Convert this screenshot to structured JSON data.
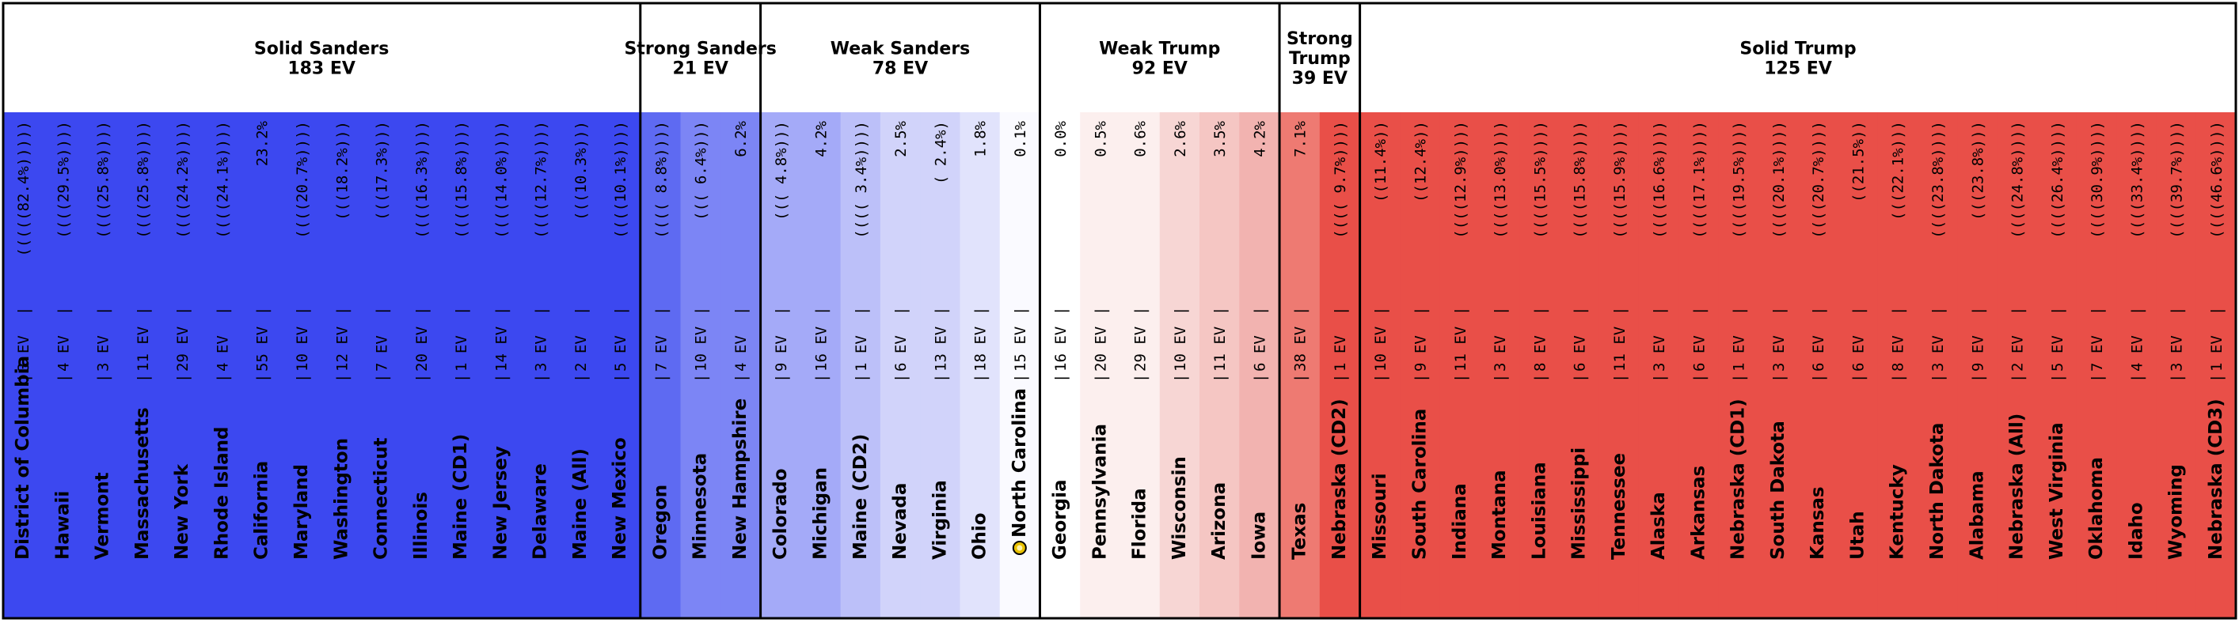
{
  "chart_data": {
    "type": "table",
    "title": "",
    "categories": [
      {
        "label": "Solid Sanders",
        "ev": "183 EV",
        "color": "#3c48f0"
      },
      {
        "label": "Strong Sanders",
        "ev": "21 EV",
        "color": "#5e6af2"
      },
      {
        "label": "Weak Sanders",
        "ev": "78 EV",
        "color": "#c9ccf9"
      },
      {
        "label": "Weak Trump",
        "ev": "92 EV",
        "color": "#f5c6c3"
      },
      {
        "label": "Strong Trump",
        "ev": "39 EV",
        "color": "#ee7a72"
      },
      {
        "label": "Solid Trump",
        "ev": "125 EV",
        "color": "#e94f48"
      }
    ],
    "states": [
      {
        "state": "District of Columbia",
        "ev": "3 EV",
        "margin": "(((((82.4%)))))",
        "category": 0,
        "color": "#3c48f0"
      },
      {
        "state": "Hawaii",
        "ev": "4 EV",
        "margin": "((((29.5%))))",
        "category": 0,
        "color": "#3c48f0"
      },
      {
        "state": "Vermont",
        "ev": "3 EV",
        "margin": "((((25.8%))))",
        "category": 0,
        "color": "#3c48f0"
      },
      {
        "state": "Massachusetts",
        "ev": "11 EV",
        "margin": "((((25.8%))))",
        "category": 0,
        "color": "#3c48f0"
      },
      {
        "state": "New York",
        "ev": "29 EV",
        "margin": "((((24.2%))))",
        "category": 0,
        "color": "#3c48f0"
      },
      {
        "state": "Rhode Island",
        "ev": "4 EV",
        "margin": "((((24.1%))))",
        "category": 0,
        "color": "#3c48f0"
      },
      {
        "state": "California",
        "ev": "55 EV",
        "margin": "23.2%",
        "category": 0,
        "color": "#3c48f0"
      },
      {
        "state": "Maryland",
        "ev": "10 EV",
        "margin": "((((20.7%))))",
        "category": 0,
        "color": "#3c48f0"
      },
      {
        "state": "Washington",
        "ev": "12 EV",
        "margin": "(((18.2%)))",
        "category": 0,
        "color": "#3c48f0"
      },
      {
        "state": "Connecticut",
        "ev": "7 EV",
        "margin": "(((17.3%)))",
        "category": 0,
        "color": "#3c48f0"
      },
      {
        "state": "Illinois",
        "ev": "20 EV",
        "margin": "((((16.3%))))",
        "category": 0,
        "color": "#3c48f0"
      },
      {
        "state": "Maine (CD1)",
        "ev": "1 EV",
        "margin": "((((15.8%))))",
        "category": 0,
        "color": "#3c48f0"
      },
      {
        "state": "New Jersey",
        "ev": "14 EV",
        "margin": "((((14.0%))))",
        "category": 0,
        "color": "#3c48f0"
      },
      {
        "state": "Delaware",
        "ev": "3 EV",
        "margin": "((((12.7%))))",
        "category": 0,
        "color": "#3c48f0"
      },
      {
        "state": "Maine (All)",
        "ev": "2 EV",
        "margin": "(((10.3%)))",
        "category": 0,
        "color": "#3c48f0"
      },
      {
        "state": "New Mexico",
        "ev": "5 EV",
        "margin": "((((10.1%))))",
        "category": 0,
        "color": "#3c48f0"
      },
      {
        "state": "Oregon",
        "ev": "7 EV",
        "margin": "(((( 8.8%))))",
        "category": 1,
        "color": "#5e6af2"
      },
      {
        "state": "Minnesota",
        "ev": "10 EV",
        "margin": "((( 6.4%)))",
        "category": 1,
        "color": "#7c85f5"
      },
      {
        "state": "New Hampshire",
        "ev": "4 EV",
        "margin": "6.2%",
        "category": 1,
        "color": "#7c85f5"
      },
      {
        "state": "Colorado",
        "ev": "9 EV",
        "margin": "((( 4.8%)))",
        "category": 2,
        "color": "#a4aaf8"
      },
      {
        "state": "Michigan",
        "ev": "16 EV",
        "margin": "4.2%",
        "category": 2,
        "color": "#a4aaf8"
      },
      {
        "state": "Maine (CD2)",
        "ev": "1 EV",
        "margin": "(((( 3.4%))))",
        "category": 2,
        "color": "#bcc0f9"
      },
      {
        "state": "Nevada",
        "ev": "6 EV",
        "margin": "2.5%",
        "category": 2,
        "color": "#d1d3fa"
      },
      {
        "state": "Virginia",
        "ev": "13 EV",
        "margin": "( 2.4%)",
        "category": 2,
        "color": "#d1d3fa"
      },
      {
        "state": "Ohio",
        "ev": "18 EV",
        "margin": "1.8%",
        "category": 2,
        "color": "#e1e3fc"
      },
      {
        "state": "North Carolina",
        "ev": "15 EV",
        "margin": "0.1%",
        "category": 2,
        "color": "#fafaff",
        "marker": true
      },
      {
        "state": "Georgia",
        "ev": "16 EV",
        "margin": "0.0%",
        "category": 3,
        "color": "#ffffff"
      },
      {
        "state": "Pennsylvania",
        "ev": "20 EV",
        "margin": "0.5%",
        "category": 3,
        "color": "#fcefee"
      },
      {
        "state": "Florida",
        "ev": "29 EV",
        "margin": "0.6%",
        "category": 3,
        "color": "#fcefee"
      },
      {
        "state": "Wisconsin",
        "ev": "10 EV",
        "margin": "2.6%",
        "category": 3,
        "color": "#f7d6d4"
      },
      {
        "state": "Arizona",
        "ev": "11 EV",
        "margin": "3.5%",
        "category": 3,
        "color": "#f5c6c3"
      },
      {
        "state": "Iowa",
        "ev": "6 EV",
        "margin": "4.2%",
        "category": 3,
        "color": "#f2b3b0"
      },
      {
        "state": "Texas",
        "ev": "38 EV",
        "margin": "7.1%",
        "category": 4,
        "color": "#ee7a72"
      },
      {
        "state": "Nebraska (CD2)",
        "ev": "1 EV",
        "margin": "(((( 9.7%))))",
        "category": 4,
        "color": "#e94f48"
      },
      {
        "state": "Missouri",
        "ev": "10 EV",
        "margin": "((11.4%))",
        "category": 5,
        "color": "#e94f48"
      },
      {
        "state": "South Carolina",
        "ev": "9 EV",
        "margin": "((12.4%))",
        "category": 5,
        "color": "#e94f48"
      },
      {
        "state": "Indiana",
        "ev": "11 EV",
        "margin": "((((12.9%))))",
        "category": 5,
        "color": "#e94f48"
      },
      {
        "state": "Montana",
        "ev": "3 EV",
        "margin": "((((13.0%))))",
        "category": 5,
        "color": "#e94f48"
      },
      {
        "state": "Louisiana",
        "ev": "8 EV",
        "margin": "((((15.5%))))",
        "category": 5,
        "color": "#e94f48"
      },
      {
        "state": "Mississippi",
        "ev": "6 EV",
        "margin": "((((15.8%))))",
        "category": 5,
        "color": "#e94f48"
      },
      {
        "state": "Tennessee",
        "ev": "11 EV",
        "margin": "((((15.9%))))",
        "category": 5,
        "color": "#e94f48"
      },
      {
        "state": "Alaska",
        "ev": "3 EV",
        "margin": "((((16.6%))))",
        "category": 5,
        "color": "#e94f48"
      },
      {
        "state": "Arkansas",
        "ev": "6 EV",
        "margin": "((((17.1%))))",
        "category": 5,
        "color": "#e94f48"
      },
      {
        "state": "Nebraska (CD1)",
        "ev": "1 EV",
        "margin": "((((19.5%))))",
        "category": 5,
        "color": "#e94f48"
      },
      {
        "state": "South Dakota",
        "ev": "3 EV",
        "margin": "((((20.1%))))",
        "category": 5,
        "color": "#e94f48"
      },
      {
        "state": "Kansas",
        "ev": "6 EV",
        "margin": "((((20.7%))))",
        "category": 5,
        "color": "#e94f48"
      },
      {
        "state": "Utah",
        "ev": "6 EV",
        "margin": "((21.5%))",
        "category": 5,
        "color": "#e94f48"
      },
      {
        "state": "Kentucky",
        "ev": "8 EV",
        "margin": "(((22.1%)))",
        "category": 5,
        "color": "#e94f48"
      },
      {
        "state": "North Dakota",
        "ev": "3 EV",
        "margin": "((((23.8%))))",
        "category": 5,
        "color": "#e94f48"
      },
      {
        "state": "Alabama",
        "ev": "9 EV",
        "margin": "(((23.8%)))",
        "category": 5,
        "color": "#e94f48"
      },
      {
        "state": "Nebraska (All)",
        "ev": "2 EV",
        "margin": "((((24.8%))))",
        "category": 5,
        "color": "#e94f48"
      },
      {
        "state": "West Virginia",
        "ev": "5 EV",
        "margin": "((((26.4%))))",
        "category": 5,
        "color": "#e94f48"
      },
      {
        "state": "Oklahoma",
        "ev": "7 EV",
        "margin": "((((30.9%))))",
        "category": 5,
        "color": "#e94f48"
      },
      {
        "state": "Idaho",
        "ev": "4 EV",
        "margin": "((((33.4%))))",
        "category": 5,
        "color": "#e94f48"
      },
      {
        "state": "Wyoming",
        "ev": "3 EV",
        "margin": "((((39.7%))))",
        "category": 5,
        "color": "#e94f48"
      },
      {
        "state": "Nebraska (CD3)",
        "ev": "1 EV",
        "margin": "((((46.6%))))",
        "category": 5,
        "color": "#e94f48"
      }
    ]
  }
}
